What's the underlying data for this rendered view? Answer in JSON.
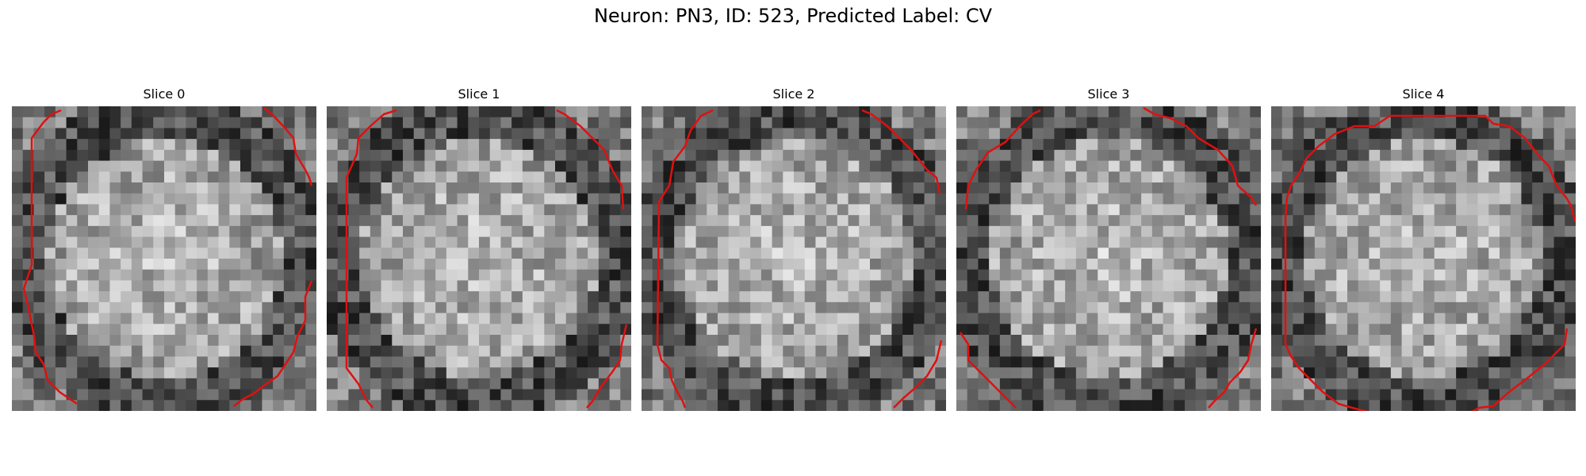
{
  "figure": {
    "title": "Neuron: PN3, ID: 523, Predicted Label: CV"
  },
  "slices": [
    {
      "title": "Slice 0",
      "seed": 11,
      "outline": "edge-fragments"
    },
    {
      "title": "Slice 1",
      "seed": 23,
      "outline": "edge-fragments"
    },
    {
      "title": "Slice 2",
      "seed": 37,
      "outline": "edge-fragments"
    },
    {
      "title": "Slice 3",
      "seed": 41,
      "outline": "edge-fragments"
    },
    {
      "title": "Slice 4",
      "seed": 59,
      "outline": "closed-octagon"
    }
  ],
  "colors": {
    "contour": "#e01010",
    "background": "#ffffff"
  }
}
